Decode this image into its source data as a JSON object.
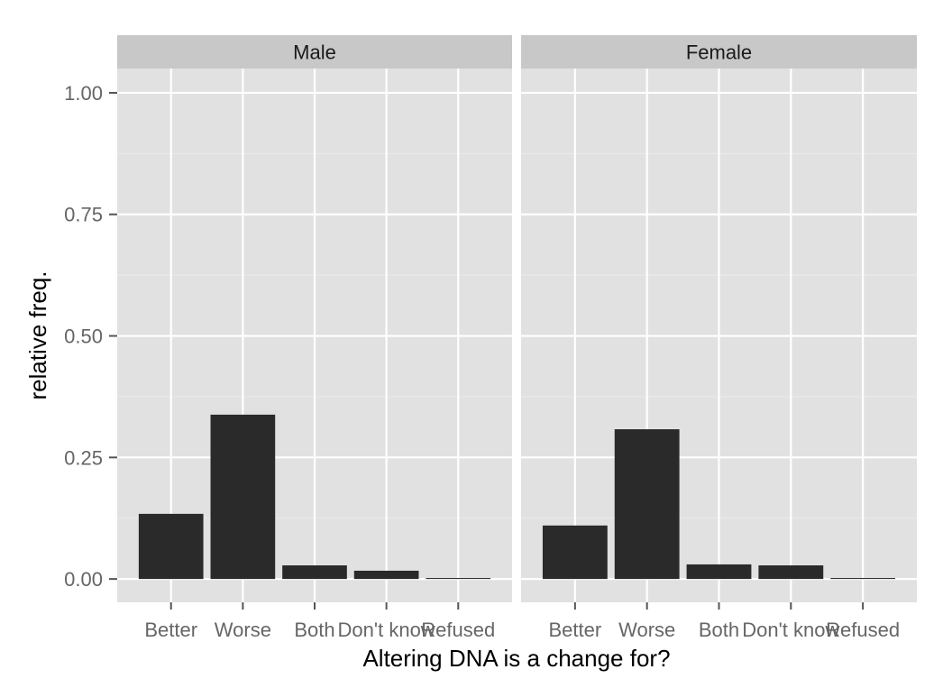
{
  "chart_data": {
    "type": "bar",
    "facets": [
      "Male",
      "Female"
    ],
    "categories": [
      "Better",
      "Worse",
      "Both",
      "Don't know",
      "Refused"
    ],
    "series": [
      {
        "name": "Male",
        "values": [
          0.134,
          0.338,
          0.028,
          0.017,
          0.002
        ]
      },
      {
        "name": "Female",
        "values": [
          0.11,
          0.308,
          0.03,
          0.028,
          0.002
        ]
      }
    ],
    "xlabel": "Altering DNA is a change for?",
    "ylabel": "relative freq.",
    "ylim": [
      -0.048,
      1.05
    ],
    "yticks": [
      "0.00",
      "0.25",
      "0.50",
      "0.75",
      "1.00"
    ],
    "ytick_values": [
      0,
      0.25,
      0.5,
      0.75,
      1.0
    ],
    "grid": true,
    "colors": {
      "bar": "#2a2a2a",
      "panel": "#e1e1e1",
      "strip": "#c8c8c8",
      "grid_major": "#ffffff",
      "grid_minor": "#ebebeb",
      "tick_text": "#666666"
    }
  }
}
